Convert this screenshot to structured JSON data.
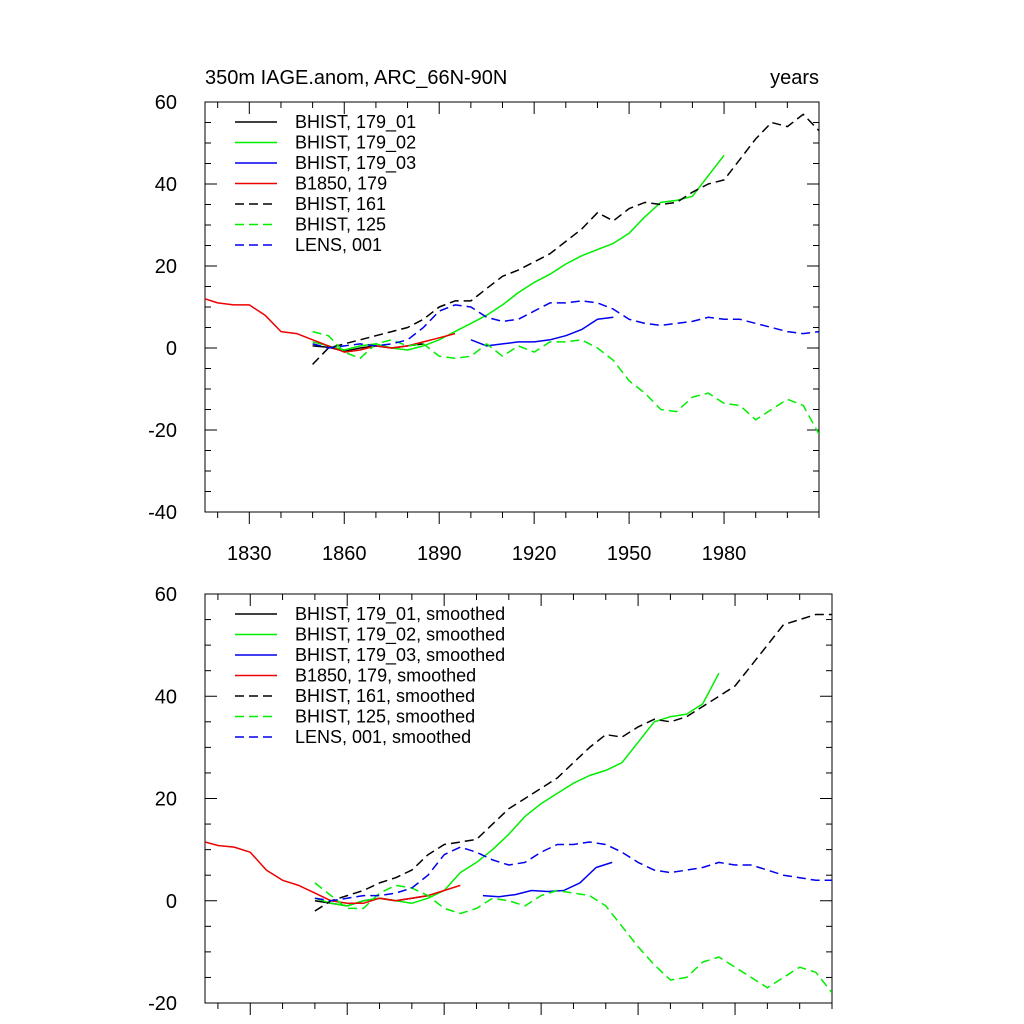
{
  "chart_data": [
    {
      "type": "line",
      "title_left": "350m IAGE.anom, ARC_66N-90N",
      "title_right": "years",
      "xlabel": "",
      "ylabel": "",
      "xlim": [
        1816,
        2010
      ],
      "ylim": [
        -40,
        60
      ],
      "xticks": [
        1830,
        1860,
        1890,
        1920,
        1950,
        1980
      ],
      "xtick_labels": [
        "1830",
        "1860",
        "1890",
        "1920",
        "1950",
        "1980"
      ],
      "yticks": [
        -40,
        -20,
        0,
        20,
        40,
        60
      ],
      "ytick_labels": [
        "-40",
        "-20",
        "0",
        "20",
        "40",
        "60"
      ],
      "legend_position": "top-left",
      "series": [
        {
          "name": "BHIST, 179_01",
          "color": "#000000",
          "dashed": false,
          "x": [
            1850,
            1855,
            1860,
            1865,
            1870,
            1875,
            1880,
            1885
          ],
          "y": [
            0.5,
            0.2,
            -0.8,
            0.0,
            0.5,
            0.0,
            0.5,
            1.0
          ]
        },
        {
          "name": "BHIST, 179_02",
          "color": "#00ee00",
          "dashed": false,
          "x": [
            1850,
            1855,
            1860,
            1865,
            1870,
            1875,
            1880,
            1885,
            1890,
            1895,
            1900,
            1905,
            1910,
            1915,
            1920,
            1925,
            1930,
            1935,
            1940,
            1945,
            1950,
            1955,
            1960,
            1965,
            1970,
            1975,
            1980
          ],
          "y": [
            1.5,
            0.5,
            -0.5,
            0.5,
            1.0,
            0.0,
            -0.5,
            0.5,
            2.0,
            4.0,
            6.0,
            8.0,
            10.5,
            13.5,
            16.0,
            18.0,
            20.5,
            22.5,
            24.0,
            25.5,
            28.0,
            32.0,
            35.5,
            36.0,
            37.0,
            42.0,
            47.0
          ]
        },
        {
          "name": "BHIST, 179_03",
          "color": "#0000ee",
          "dashed": false,
          "x": [
            1900,
            1905,
            1910,
            1915,
            1920,
            1925,
            1930,
            1935,
            1940,
            1945
          ],
          "y": [
            2.0,
            0.5,
            1.0,
            1.5,
            1.5,
            2.0,
            3.0,
            4.5,
            7.0,
            7.5
          ]
        },
        {
          "name": "B1850, 179",
          "color": "#ee0000",
          "dashed": false,
          "x": [
            1816,
            1820,
            1825,
            1830,
            1835,
            1840,
            1845,
            1850,
            1855,
            1860,
            1865,
            1870,
            1875,
            1880,
            1885,
            1890,
            1895
          ],
          "y": [
            12.0,
            11.0,
            10.5,
            10.5,
            8.0,
            4.0,
            3.5,
            2.0,
            0.5,
            -1.0,
            -0.5,
            0.5,
            0.0,
            0.5,
            1.5,
            2.5,
            3.5
          ]
        },
        {
          "name": "BHIST, 161",
          "color": "#000000",
          "dashed": true,
          "x": [
            1850,
            1855,
            1860,
            1865,
            1870,
            1875,
            1880,
            1885,
            1890,
            1895,
            1900,
            1905,
            1910,
            1915,
            1920,
            1925,
            1930,
            1935,
            1940,
            1945,
            1950,
            1955,
            1960,
            1965,
            1970,
            1975,
            1980,
            1985,
            1990,
            1995,
            2000,
            2005,
            2010
          ],
          "y": [
            -4.0,
            0.0,
            1.0,
            2.0,
            3.0,
            4.0,
            5.0,
            7.0,
            10.0,
            11.5,
            11.5,
            14.5,
            17.5,
            19.0,
            21.0,
            23.0,
            26.0,
            29.0,
            33.0,
            31.0,
            34.0,
            35.5,
            35.0,
            35.5,
            38.0,
            40.0,
            41.0,
            46.0,
            51.0,
            55.0,
            54.0,
            57.0,
            53.0
          ]
        },
        {
          "name": "BHIST, 125",
          "color": "#00ee00",
          "dashed": true,
          "x": [
            1850,
            1855,
            1860,
            1865,
            1870,
            1875,
            1880,
            1885,
            1890,
            1895,
            1900,
            1905,
            1910,
            1915,
            1920,
            1925,
            1930,
            1935,
            1940,
            1945,
            1950,
            1955,
            1960,
            1965,
            1970,
            1975,
            1980,
            1985,
            1990,
            1995,
            2000,
            2005,
            2010
          ],
          "y": [
            4.0,
            3.0,
            -1.0,
            -2.5,
            1.0,
            2.0,
            0.5,
            1.0,
            -2.0,
            -2.5,
            -2.0,
            1.0,
            -2.0,
            0.5,
            -1.0,
            1.5,
            1.5,
            2.0,
            0.0,
            -3.0,
            -8.0,
            -11.0,
            -15.0,
            -15.5,
            -12.0,
            -11.0,
            -13.5,
            -14.0,
            -17.5,
            -15.0,
            -12.5,
            -14.0,
            -21.0
          ]
        },
        {
          "name": "LENS, 001",
          "color": "#0000ee",
          "dashed": true,
          "x": [
            1850,
            1855,
            1860,
            1865,
            1870,
            1875,
            1880,
            1885,
            1890,
            1895,
            1900,
            1905,
            1910,
            1915,
            1920,
            1925,
            1930,
            1935,
            1940,
            1945,
            1950,
            1955,
            1960,
            1965,
            1970,
            1975,
            1980,
            1985,
            1990,
            1995,
            2000,
            2005,
            2010
          ],
          "y": [
            1.0,
            0.0,
            0.5,
            1.0,
            0.5,
            1.0,
            2.0,
            5.0,
            9.0,
            10.5,
            10.0,
            7.5,
            6.5,
            7.0,
            9.0,
            11.0,
            11.0,
            11.5,
            11.0,
            9.5,
            7.0,
            6.0,
            5.5,
            6.0,
            6.5,
            7.5,
            7.0,
            7.0,
            6.0,
            5.0,
            4.0,
            3.5,
            4.0
          ]
        }
      ]
    },
    {
      "type": "line",
      "title_left": "",
      "title_right": "",
      "xlabel": "",
      "ylabel": "",
      "xlim": [
        1816,
        2010
      ],
      "ylim": [
        -20,
        60
      ],
      "xticks": [
        1830,
        1860,
        1890,
        1920,
        1950,
        1980
      ],
      "xtick_labels": [],
      "yticks": [
        -20,
        0,
        20,
        40,
        60
      ],
      "ytick_labels": [
        "-20",
        "0",
        "20",
        "40",
        "60"
      ],
      "legend_position": "top-left",
      "series": [
        {
          "name": "BHIST, 179_01, smoothed",
          "color": "#000000",
          "dashed": false,
          "x": [
            1850,
            1855,
            1860,
            1865,
            1870,
            1875,
            1880,
            1885
          ],
          "y": [
            0.0,
            -0.5,
            -1.0,
            0.0,
            0.5,
            0.0,
            0.5,
            1.0
          ]
        },
        {
          "name": "BHIST, 179_02, smoothed",
          "color": "#00ee00",
          "dashed": false,
          "x": [
            1850,
            1855,
            1860,
            1865,
            1870,
            1875,
            1880,
            1885,
            1890,
            1895,
            1900,
            1905,
            1910,
            1915,
            1920,
            1925,
            1930,
            1935,
            1940,
            1945,
            1950,
            1955,
            1960,
            1965,
            1970,
            1975
          ],
          "y": [
            0.5,
            -0.5,
            -1.0,
            0.0,
            0.5,
            0.0,
            -0.5,
            0.5,
            2.0,
            5.5,
            7.5,
            10.0,
            13.0,
            16.5,
            19.0,
            21.0,
            23.0,
            24.5,
            25.5,
            27.0,
            31.0,
            35.0,
            36.0,
            36.5,
            38.5,
            44.5
          ]
        },
        {
          "name": "BHIST, 179_03, smoothed",
          "color": "#0000ee",
          "dashed": false,
          "x": [
            1902,
            1907,
            1912,
            1917,
            1922,
            1927,
            1932,
            1937,
            1942
          ],
          "y": [
            1.0,
            0.8,
            1.2,
            2.0,
            1.8,
            2.0,
            3.5,
            6.5,
            7.5
          ]
        },
        {
          "name": "B1850, 179, smoothed",
          "color": "#ee0000",
          "dashed": false,
          "x": [
            1816,
            1820,
            1825,
            1830,
            1835,
            1840,
            1845,
            1850,
            1855,
            1860,
            1865,
            1870,
            1875,
            1880,
            1885,
            1890,
            1895
          ],
          "y": [
            11.5,
            10.8,
            10.5,
            9.5,
            6.0,
            4.0,
            3.0,
            1.5,
            0.0,
            -0.5,
            -0.5,
            0.5,
            0.0,
            0.5,
            1.0,
            2.0,
            3.0
          ]
        },
        {
          "name": "BHIST, 161, smoothed",
          "color": "#000000",
          "dashed": true,
          "x": [
            1850,
            1855,
            1860,
            1865,
            1870,
            1875,
            1880,
            1885,
            1890,
            1895,
            1900,
            1905,
            1910,
            1915,
            1920,
            1925,
            1930,
            1935,
            1940,
            1945,
            1950,
            1955,
            1960,
            1965,
            1970,
            1975,
            1980,
            1985,
            1990,
            1995,
            2000,
            2005,
            2010
          ],
          "y": [
            -2.0,
            0.0,
            1.0,
            2.0,
            3.5,
            4.5,
            6.0,
            9.0,
            11.0,
            11.5,
            12.0,
            15.0,
            18.0,
            20.0,
            22.0,
            24.0,
            27.0,
            30.0,
            32.5,
            32.0,
            34.0,
            35.5,
            35.0,
            36.0,
            38.0,
            40.0,
            42.0,
            46.0,
            50.0,
            54.0,
            55.0,
            56.0,
            56.0
          ]
        },
        {
          "name": "BHIST, 125, smoothed",
          "color": "#00ee00",
          "dashed": true,
          "x": [
            1850,
            1855,
            1860,
            1865,
            1870,
            1875,
            1880,
            1885,
            1890,
            1895,
            1900,
            1905,
            1910,
            1915,
            1920,
            1925,
            1930,
            1935,
            1940,
            1945,
            1950,
            1955,
            1960,
            1965,
            1970,
            1975,
            1980,
            1985,
            1990,
            1995,
            2000,
            2005,
            2010
          ],
          "y": [
            3.5,
            1.0,
            -1.5,
            -1.5,
            1.5,
            3.0,
            2.5,
            1.0,
            -1.5,
            -2.5,
            -1.5,
            0.5,
            0.0,
            -1.0,
            1.0,
            2.0,
            1.5,
            1.0,
            -1.0,
            -5.0,
            -9.0,
            -12.5,
            -15.5,
            -15.0,
            -12.0,
            -11.0,
            -13.0,
            -15.0,
            -17.0,
            -15.0,
            -13.0,
            -14.0,
            -18.0
          ]
        },
        {
          "name": "LENS, 001, smoothed",
          "color": "#0000ee",
          "dashed": true,
          "x": [
            1850,
            1855,
            1860,
            1865,
            1870,
            1875,
            1880,
            1885,
            1890,
            1895,
            1900,
            1905,
            1910,
            1915,
            1920,
            1925,
            1930,
            1935,
            1940,
            1945,
            1950,
            1955,
            1960,
            1965,
            1970,
            1975,
            1980,
            1985,
            1990,
            1995,
            2000,
            2005,
            2010
          ],
          "y": [
            0.5,
            0.0,
            0.5,
            1.0,
            1.0,
            1.5,
            2.5,
            5.0,
            9.0,
            10.5,
            9.5,
            8.0,
            7.0,
            7.5,
            9.5,
            11.0,
            11.0,
            11.5,
            11.0,
            9.5,
            7.5,
            6.0,
            5.5,
            6.0,
            6.5,
            7.5,
            7.0,
            7.0,
            6.0,
            5.0,
            4.5,
            4.0,
            4.0
          ]
        }
      ]
    }
  ]
}
